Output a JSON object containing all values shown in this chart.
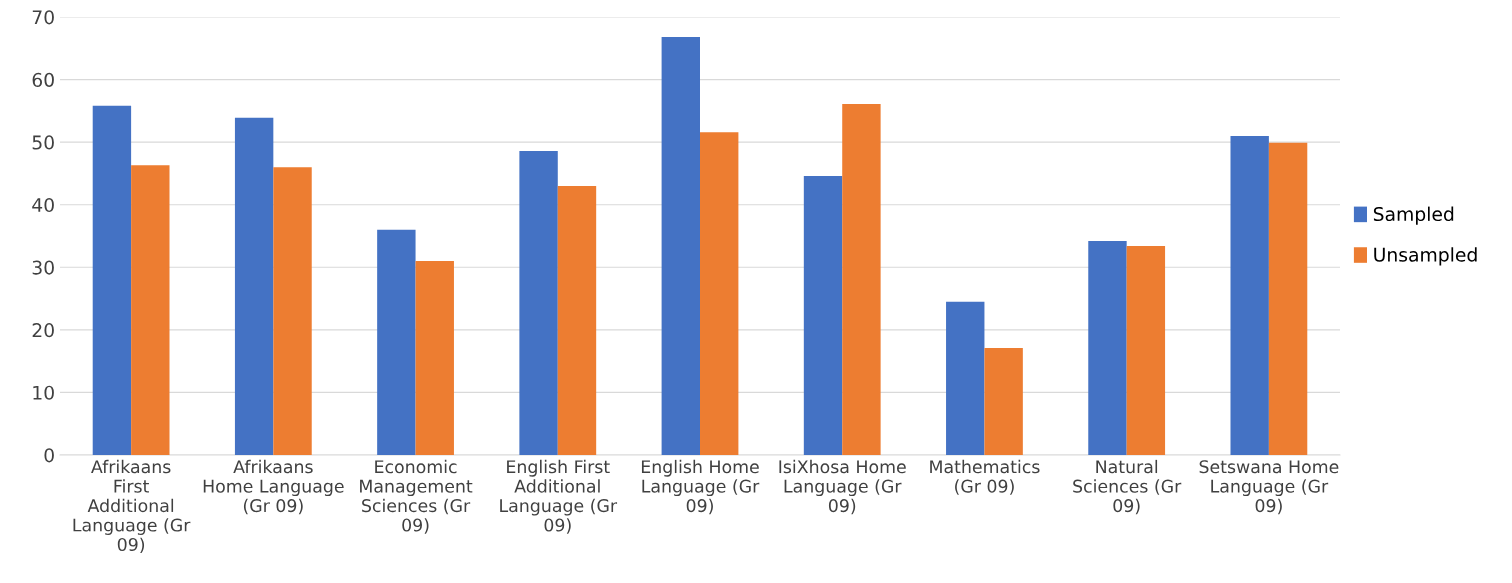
{
  "chart_data": {
    "type": "bar",
    "categories": [
      "Afrikaans First Additional Language (Gr 09)",
      "Afrikaans Home Language (Gr 09)",
      "Economic Management Sciences (Gr 09)",
      "English First Additional Language (Gr 09)",
      "English Home Language (Gr 09)",
      "IsiXhosa Home Language (Gr 09)",
      "Mathematics (Gr 09)",
      "Natural Sciences (Gr 09)",
      "Setswana Home Language (Gr 09)"
    ],
    "series": [
      {
        "name": "Sampled",
        "color": "#4472c4",
        "values": [
          55.8,
          53.9,
          36.0,
          48.6,
          66.8,
          44.6,
          24.5,
          34.2,
          51.0
        ]
      },
      {
        "name": "Unsampled",
        "color": "#ed7d31",
        "values": [
          46.3,
          46.0,
          31.0,
          43.0,
          51.6,
          56.1,
          17.1,
          33.4,
          49.9
        ]
      }
    ],
    "ylim": [
      0,
      70
    ],
    "yticks": [
      0,
      10,
      20,
      30,
      40,
      50,
      60,
      70
    ],
    "grid": "y",
    "legend": "right"
  }
}
